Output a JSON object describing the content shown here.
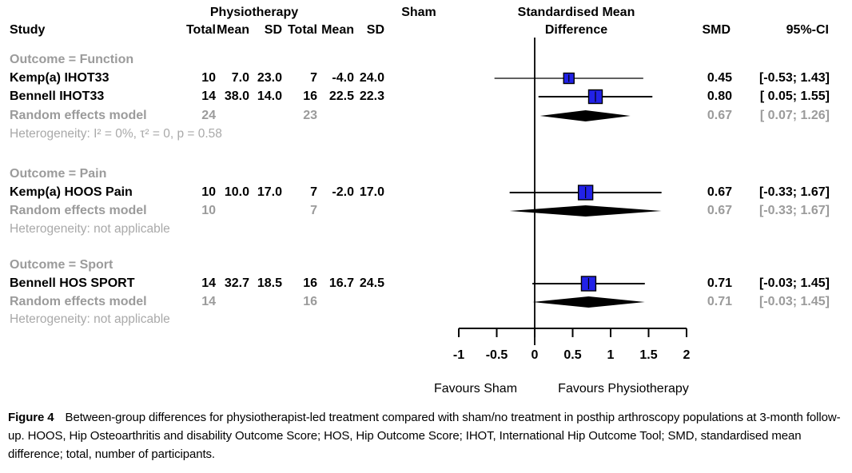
{
  "figure": {
    "header": {
      "study_col": "Study",
      "physio_group": "Physiotherapy",
      "sham_group": "Sham",
      "subcols": [
        "Total",
        "Mean",
        "SD"
      ],
      "effect_line1": "Standardised Mean",
      "effect_line2": "Difference",
      "smd_col": "SMD",
      "ci_col": "95%-CI"
    },
    "axis": {
      "tick_labels": [
        "-1",
        "-0.5",
        "0",
        "0.5",
        "1",
        "1.5",
        "2"
      ],
      "favours_left": "Favours Sham",
      "favours_right": "Favours Physiotherapy"
    },
    "caption": {
      "label": "Figure 4",
      "text": "Between-group differences for physiotherapist-led treatment compared with sham/no treatment in posthip arthroscopy populations at 3-month follow-up. HOOS, Hip Osteoarthritis and disability Outcome Score; HOS, Hip Outcome Score; IHOT, International Hip Outcome Tool; SMD, standardised mean difference; total, number of participants."
    },
    "colors": {
      "square_fill": "#2222E8",
      "diamond_fill": "#000000",
      "group_text": "#9B9B9B",
      "het_text": "#A9A9A9",
      "black_text": "#000000"
    }
  },
  "chart_data": {
    "type": "forest",
    "effect_measure": "Standardised Mean Difference",
    "xlim": [
      -1,
      2
    ],
    "xticks": [
      -1,
      -0.5,
      0,
      0.5,
      1,
      1.5,
      2
    ],
    "favours": [
      "Favours Sham",
      "Favours Physiotherapy"
    ],
    "groups": [
      {
        "label": "Outcome = Function",
        "studies": [
          {
            "study": "Kemp(a) IHOT33",
            "physio_total": "10",
            "physio_mean": "7.0",
            "physio_sd": "23.0",
            "sham_total": "7",
            "sham_mean": "-4.0",
            "sham_sd": "24.0",
            "smd": 0.45,
            "ci_low": -0.53,
            "ci_high": 1.43,
            "smd_text": "0.45",
            "ci_text": "[-0.53; 1.43]",
            "square": 13,
            "ci_lw": 1.3
          },
          {
            "study": "Bennell IHOT33",
            "physio_total": "14",
            "physio_mean": "38.0",
            "physio_sd": "14.0",
            "sham_total": "16",
            "sham_mean": "22.5",
            "sham_sd": "22.3",
            "smd": 0.8,
            "ci_low": 0.05,
            "ci_high": 1.55,
            "smd_text": "0.80",
            "ci_text": "[ 0.05; 1.55]",
            "square": 17,
            "ci_lw": 2
          }
        ],
        "random_effects": {
          "label": "Random effects model",
          "physio_total": "24",
          "sham_total": "23",
          "smd": 0.67,
          "ci_low": 0.07,
          "ci_high": 1.26,
          "smd_text": "0.67",
          "ci_text": "[ 0.07; 1.26]"
        },
        "heterogeneity": "Heterogeneity: I² = 0%, τ² = 0, p = 0.58"
      },
      {
        "label": "Outcome = Pain",
        "studies": [
          {
            "study": "Kemp(a) HOOS Pain",
            "physio_total": "10",
            "physio_mean": "10.0",
            "physio_sd": "17.0",
            "sham_total": "7",
            "sham_mean": "-2.0",
            "sham_sd": "17.0",
            "smd": 0.67,
            "ci_low": -0.33,
            "ci_high": 1.67,
            "smd_text": "0.67",
            "ci_text": "[-0.33; 1.67]",
            "square": 18,
            "ci_lw": 2
          }
        ],
        "random_effects": {
          "label": "Random effects model",
          "physio_total": "10",
          "sham_total": "7",
          "smd": 0.67,
          "ci_low": -0.33,
          "ci_high": 1.67,
          "smd_text": "0.67",
          "ci_text": "[-0.33; 1.67]"
        },
        "heterogeneity": "Heterogeneity: not applicable"
      },
      {
        "label": "Outcome = Sport",
        "studies": [
          {
            "study": "Bennell HOS SPORT",
            "physio_total": "14",
            "physio_mean": "32.7",
            "physio_sd": "18.5",
            "sham_total": "16",
            "sham_mean": "16.7",
            "sham_sd": "24.5",
            "smd": 0.71,
            "ci_low": -0.03,
            "ci_high": 1.45,
            "smd_text": "0.71",
            "ci_text": "[-0.03; 1.45]",
            "square": 18,
            "ci_lw": 2
          }
        ],
        "random_effects": {
          "label": "Random effects model",
          "physio_total": "14",
          "sham_total": "16",
          "smd": 0.71,
          "ci_low": -0.03,
          "ci_high": 1.45,
          "smd_text": "0.71",
          "ci_text": "[-0.03; 1.45]"
        },
        "heterogeneity": "Heterogeneity: not applicable"
      }
    ]
  }
}
